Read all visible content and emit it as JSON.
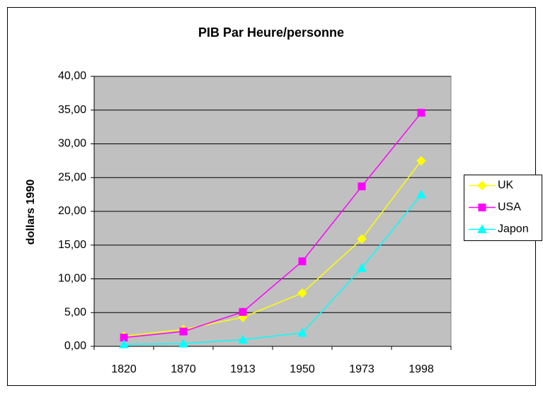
{
  "chart_data": {
    "type": "line",
    "title": "PIB Par Heure/personne",
    "y_label": "dollars 1990",
    "categories": [
      "1820",
      "1870",
      "1913",
      "1950",
      "1973",
      "1998"
    ],
    "series": [
      {
        "name": "UK",
        "color": "#ffff00",
        "marker": "diamond",
        "values": [
          1.5,
          2.5,
          4.3,
          7.9,
          15.9,
          27.5
        ]
      },
      {
        "name": "USA",
        "color": "#ff00ff",
        "marker": "square",
        "values": [
          1.3,
          2.2,
          5.1,
          12.6,
          23.7,
          34.6
        ]
      },
      {
        "name": "Japon",
        "color": "#00ffff",
        "marker": "triangle",
        "values": [
          0.3,
          0.4,
          1.0,
          2.0,
          11.6,
          22.5
        ]
      }
    ],
    "ylim": [
      0,
      40
    ],
    "yticks": [
      {
        "value": 0,
        "label": "0,00"
      },
      {
        "value": 5,
        "label": "5,00"
      },
      {
        "value": 10,
        "label": "10,00"
      },
      {
        "value": 15,
        "label": "15,00"
      },
      {
        "value": 20,
        "label": "20,00"
      },
      {
        "value": 25,
        "label": "25,00"
      },
      {
        "value": 30,
        "label": "30,00"
      },
      {
        "value": 35,
        "label": "35,00"
      },
      {
        "value": 40,
        "label": "40,00"
      }
    ],
    "grid": true,
    "legend": "right"
  }
}
